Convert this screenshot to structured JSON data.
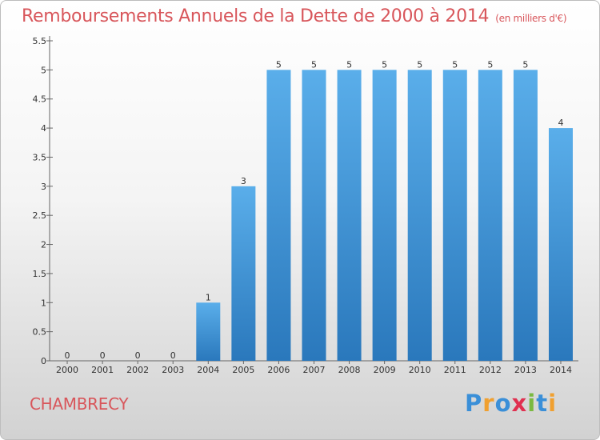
{
  "header": {
    "title": "Remboursements Annuels de la Dette de 2000 à 2014",
    "unit": "(en milliers d'€)"
  },
  "footer": {
    "commune": "CHAMBRECY",
    "logo": "Proxiti",
    "logo_colors": [
      "#3a8fd8",
      "#f0a030",
      "#3a8fd8",
      "#e03050",
      "#7ab940",
      "#3a8fd8",
      "#f0a030"
    ]
  },
  "chart_data": {
    "type": "bar",
    "categories": [
      "2000",
      "2001",
      "2002",
      "2003",
      "2004",
      "2005",
      "2006",
      "2007",
      "2008",
      "2009",
      "2010",
      "2011",
      "2012",
      "2013",
      "2014"
    ],
    "values": [
      0,
      0,
      0,
      0,
      1,
      3,
      5,
      5,
      5,
      5,
      5,
      5,
      5,
      5,
      4
    ],
    "value_labels": [
      "0",
      "0",
      "0",
      "0",
      "1",
      "3",
      "5",
      "5",
      "5",
      "5",
      "5",
      "5",
      "5",
      "5",
      "4"
    ],
    "yticks": [
      "0",
      "0.5",
      "1",
      "1.5",
      "2",
      "2.5",
      "3",
      "3.5",
      "4",
      "4.5",
      "5",
      "5.5"
    ],
    "ylim": [
      0,
      5.5
    ],
    "grid": false,
    "bar_color_top": "#5aaeea",
    "bar_color_bottom": "#2a78bc"
  }
}
